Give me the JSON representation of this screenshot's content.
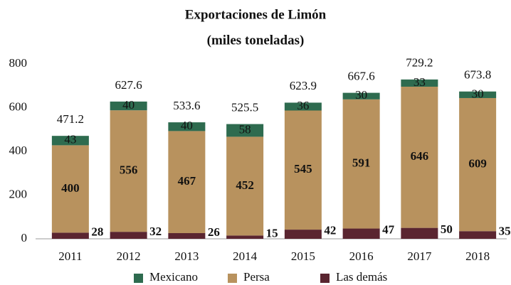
{
  "chart_data": {
    "type": "stacked_bar",
    "title": "Exportaciones de Limón",
    "subtitle": "(miles toneladas)",
    "categories": [
      "2011",
      "2012",
      "2013",
      "2014",
      "2015",
      "2016",
      "2017",
      "2018"
    ],
    "series": [
      {
        "name": "Las demás",
        "color": "#5a2530",
        "values": [
          28,
          32,
          26,
          15,
          42,
          47,
          50,
          35
        ]
      },
      {
        "name": "Persa",
        "color": "#b8925e",
        "values": [
          400,
          556,
          467,
          452,
          545,
          591,
          646,
          609
        ]
      },
      {
        "name": "Mexicano",
        "color": "#2e6b4f",
        "values": [
          43,
          40,
          40,
          58,
          36,
          30,
          33,
          30
        ]
      }
    ],
    "totals": [
      471.2,
      627.6,
      533.6,
      525.5,
      623.9,
      667.6,
      729.2,
      673.8
    ],
    "ylim": [
      0,
      800
    ],
    "yticks": [
      0,
      200,
      400,
      600,
      800
    ],
    "grid": false,
    "legend": "bottom"
  }
}
